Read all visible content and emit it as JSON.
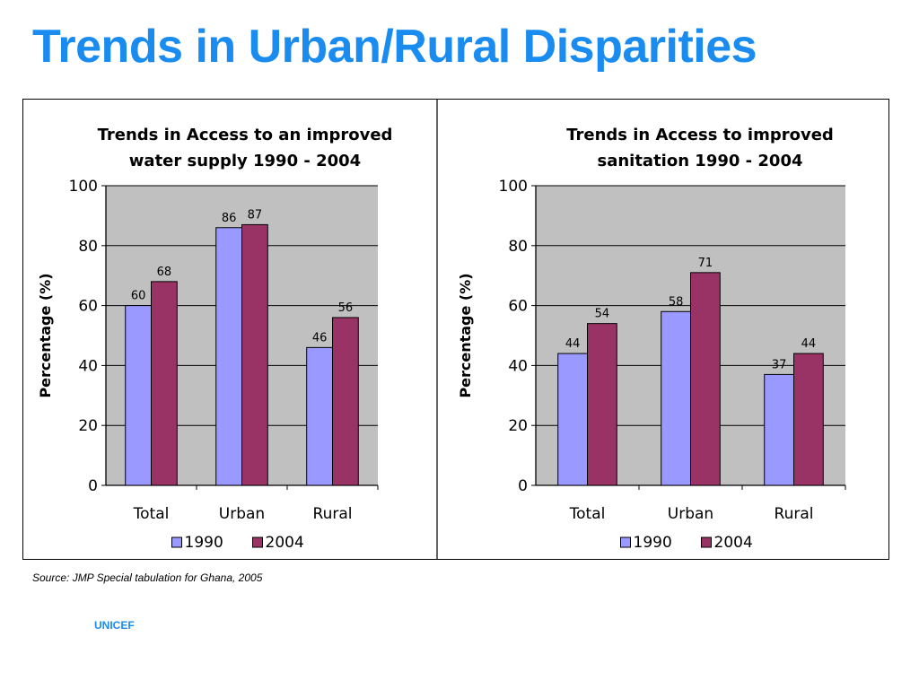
{
  "slide": {
    "title": "Trends in Urban/Rural Disparities",
    "source": "Source:  JMP Special tabulation for Ghana, 2005",
    "org": "UNICEF",
    "title_color": "#1a8cf0"
  },
  "colors": {
    "series_1990": "#9999ff",
    "series_2004": "#993366",
    "plot_bg": "#c0c0c0"
  },
  "chart_data": [
    {
      "type": "bar",
      "title": [
        "Trends in Access to an improved",
        "water supply 1990 - 2004"
      ],
      "ylabel": "Percentage (%)",
      "xlabel": "",
      "categories": [
        "Total",
        "Urban",
        "Rural"
      ],
      "ylim": [
        0,
        100
      ],
      "yticks": [
        0,
        20,
        40,
        60,
        80,
        100
      ],
      "grid": true,
      "legend": "bottom",
      "series": [
        {
          "name": "1990",
          "values": [
            60,
            86,
            46
          ]
        },
        {
          "name": "2004",
          "values": [
            68,
            87,
            56
          ]
        }
      ]
    },
    {
      "type": "bar",
      "title": [
        "Trends in Access to improved",
        "sanitation 1990 - 2004"
      ],
      "ylabel": "Percentage (%)",
      "xlabel": "",
      "categories": [
        "Total",
        "Urban",
        "Rural"
      ],
      "ylim": [
        0,
        100
      ],
      "yticks": [
        0,
        20,
        40,
        60,
        80,
        100
      ],
      "grid": true,
      "legend": "bottom",
      "series": [
        {
          "name": "1990",
          "values": [
            44,
            58,
            37
          ]
        },
        {
          "name": "2004",
          "values": [
            54,
            71,
            44
          ]
        }
      ]
    }
  ]
}
